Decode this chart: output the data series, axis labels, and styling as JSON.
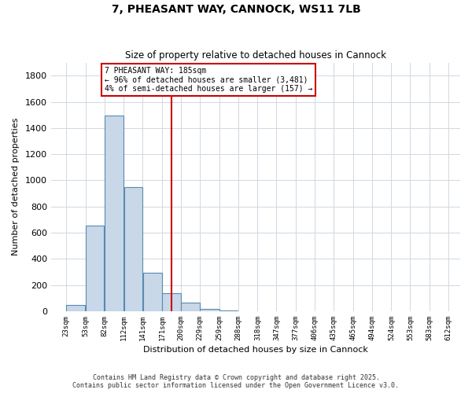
{
  "title": "7, PHEASANT WAY, CANNOCK, WS11 7LB",
  "subtitle": "Size of property relative to detached houses in Cannock",
  "xlabel": "Distribution of detached houses by size in Cannock",
  "ylabel": "Number of detached properties",
  "bar_left_edges": [
    23,
    53,
    82,
    112,
    141,
    171,
    200,
    229,
    259,
    288,
    318,
    347,
    377,
    406,
    435,
    465,
    494,
    524,
    553,
    583
  ],
  "bar_widths": [
    30,
    29,
    30,
    29,
    30,
    29,
    29,
    30,
    29,
    30,
    29,
    30,
    29,
    29,
    30,
    29,
    30,
    29,
    30,
    29
  ],
  "bar_heights": [
    45,
    655,
    1495,
    950,
    295,
    135,
    65,
    20,
    5,
    0,
    0,
    0,
    0,
    0,
    0,
    0,
    0,
    0,
    0,
    0
  ],
  "bar_color": "#c8d8e8",
  "bar_edge_color": "#5a8ab0",
  "vline_x": 185,
  "vline_color": "#cc0000",
  "ylim": [
    0,
    1900
  ],
  "yticks": [
    0,
    200,
    400,
    600,
    800,
    1000,
    1200,
    1400,
    1600,
    1800
  ],
  "xtick_labels": [
    "23sqm",
    "53sqm",
    "82sqm",
    "112sqm",
    "141sqm",
    "171sqm",
    "200sqm",
    "229sqm",
    "259sqm",
    "288sqm",
    "318sqm",
    "347sqm",
    "377sqm",
    "406sqm",
    "435sqm",
    "465sqm",
    "494sqm",
    "524sqm",
    "553sqm",
    "583sqm",
    "612sqm"
  ],
  "xtick_positions": [
    23,
    53,
    82,
    112,
    141,
    171,
    200,
    229,
    259,
    288,
    318,
    347,
    377,
    406,
    435,
    465,
    494,
    524,
    553,
    583,
    612
  ],
  "annotation_title": "7 PHEASANT WAY: 185sqm",
  "annotation_line1": "← 96% of detached houses are smaller (3,481)",
  "annotation_line2": "4% of semi-detached houses are larger (157) →",
  "bg_color": "#ffffff",
  "grid_color": "#d0d8e0",
  "footnote1": "Contains HM Land Registry data © Crown copyright and database right 2025.",
  "footnote2": "Contains public sector information licensed under the Open Government Licence v3.0.",
  "xlim": [
    0,
    630
  ]
}
